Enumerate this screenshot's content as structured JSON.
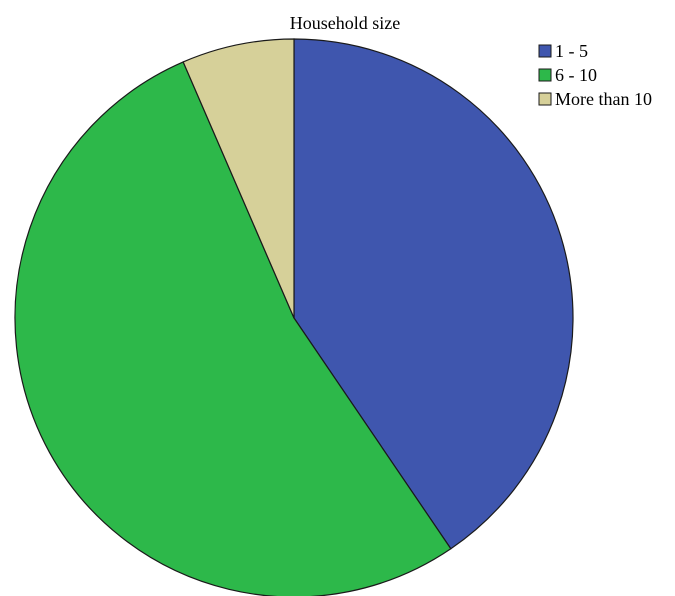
{
  "chart_data": {
    "type": "pie",
    "title": "Household size",
    "categories": [
      "1 - 5",
      "6 - 10",
      "More than 10"
    ],
    "values": [
      40.5,
      53.0,
      6.5
    ],
    "colors": [
      "#3f56ae",
      "#2db84a",
      "#d6d099"
    ],
    "start_angle_deg": 0,
    "direction": "clockwise",
    "legend_position": "top-right"
  }
}
